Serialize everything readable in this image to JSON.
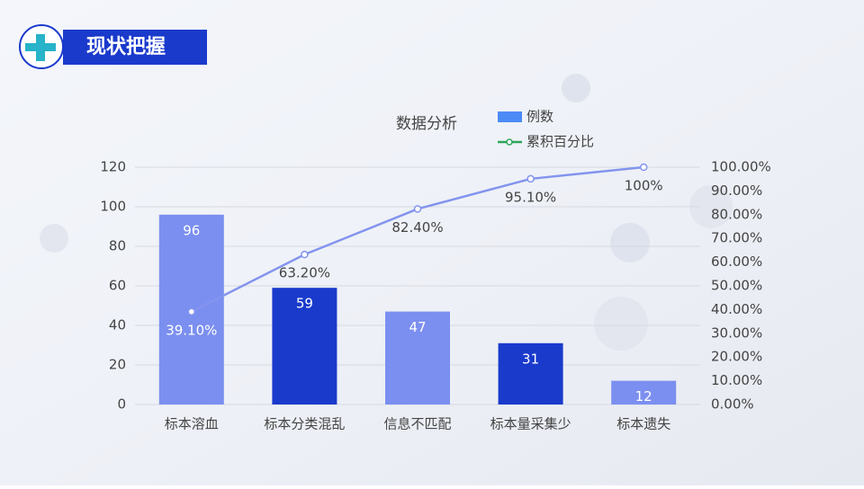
{
  "header": {
    "title": "现状把握"
  },
  "chart_data": {
    "type": "pareto",
    "title": "数据分析",
    "categories": [
      "标本溶血",
      "标本分类混乱",
      "信息不匹配",
      "标本量采集少",
      "标本遗失"
    ],
    "series": [
      {
        "name": "例数",
        "color": "#4c8bf5",
        "bar_colors": [
          "#7b8ff0",
          "#1a3acc",
          "#7b8ff0",
          "#1a3acc",
          "#7b8ff0"
        ],
        "values": [
          96,
          59,
          47,
          31,
          12
        ]
      },
      {
        "name": "累积百分比",
        "axis": "y2",
        "color": "#8394ee",
        "legend_color": "#2ea55a",
        "values": [
          39.1,
          63.2,
          82.4,
          95.1,
          100
        ],
        "value_labels": [
          "39.10%",
          "63.20%",
          "82.40%",
          "95.10%",
          "100%"
        ]
      }
    ],
    "ylim": [
      0,
      120
    ],
    "yticks": [
      0,
      20,
      40,
      60,
      80,
      100,
      120
    ],
    "y2lim": [
      0,
      100
    ],
    "y2ticks": [
      {
        "value": 0,
        "label": "0.00%"
      },
      {
        "value": 10,
        "label": "10.00%"
      },
      {
        "value": 20,
        "label": "20.00%"
      },
      {
        "value": 30,
        "label": "30.00%"
      },
      {
        "value": 40,
        "label": "40.00%"
      },
      {
        "value": 50,
        "label": "50.00%"
      },
      {
        "value": 60,
        "label": "60.00%"
      },
      {
        "value": 70,
        "label": "70.00%"
      },
      {
        "value": 80,
        "label": "80.00%"
      },
      {
        "value": 90,
        "label": "90.00%"
      },
      {
        "value": 100,
        "label": "100.00%"
      }
    ],
    "grid": true
  }
}
